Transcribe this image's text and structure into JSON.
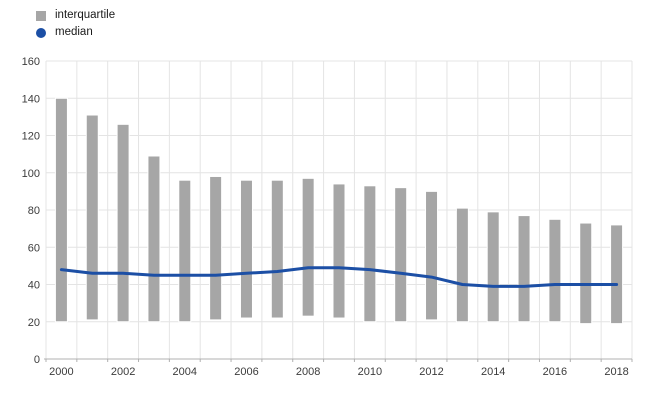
{
  "legend": {
    "interquartile_label": "interquartile",
    "median_label": "median"
  },
  "colors": {
    "bar": "#a6a6a6",
    "line": "#1c4fa5",
    "grid": "#e4e4e4",
    "axis": "#b0b0b0",
    "text": "#3c3c3c"
  },
  "chart_data": {
    "type": "bar",
    "subtype": "range-bars-with-median-line",
    "title": "",
    "xlabel": "",
    "ylabel": "",
    "categories": [
      2000,
      2001,
      2002,
      2003,
      2004,
      2005,
      2006,
      2007,
      2008,
      2009,
      2010,
      2011,
      2012,
      2013,
      2014,
      2015,
      2016,
      2017,
      2018
    ],
    "series": [
      {
        "name": "interquartile",
        "type": "range_bar",
        "low": [
          20,
          21,
          20,
          20,
          20,
          21,
          22,
          22,
          23,
          22,
          20,
          20,
          21,
          20,
          20,
          20,
          20,
          19,
          19
        ],
        "high": [
          140,
          131,
          126,
          109,
          96,
          98,
          96,
          96,
          97,
          94,
          93,
          92,
          90,
          81,
          79,
          77,
          75,
          73,
          72
        ]
      },
      {
        "name": "median",
        "type": "line",
        "values": [
          48,
          46,
          46,
          45,
          45,
          45,
          46,
          47,
          49,
          49,
          48,
          46,
          44,
          40,
          39,
          39,
          40,
          40,
          40
        ]
      }
    ],
    "ylim": [
      0,
      160
    ],
    "ytick_step": 20,
    "yticks": [
      0,
      20,
      40,
      60,
      80,
      100,
      120,
      140,
      160
    ],
    "xtick_labels": [
      2000,
      2002,
      2004,
      2006,
      2008,
      2010,
      2012,
      2014,
      2016,
      2018
    ],
    "grid": true,
    "legend_position": "top-left"
  }
}
